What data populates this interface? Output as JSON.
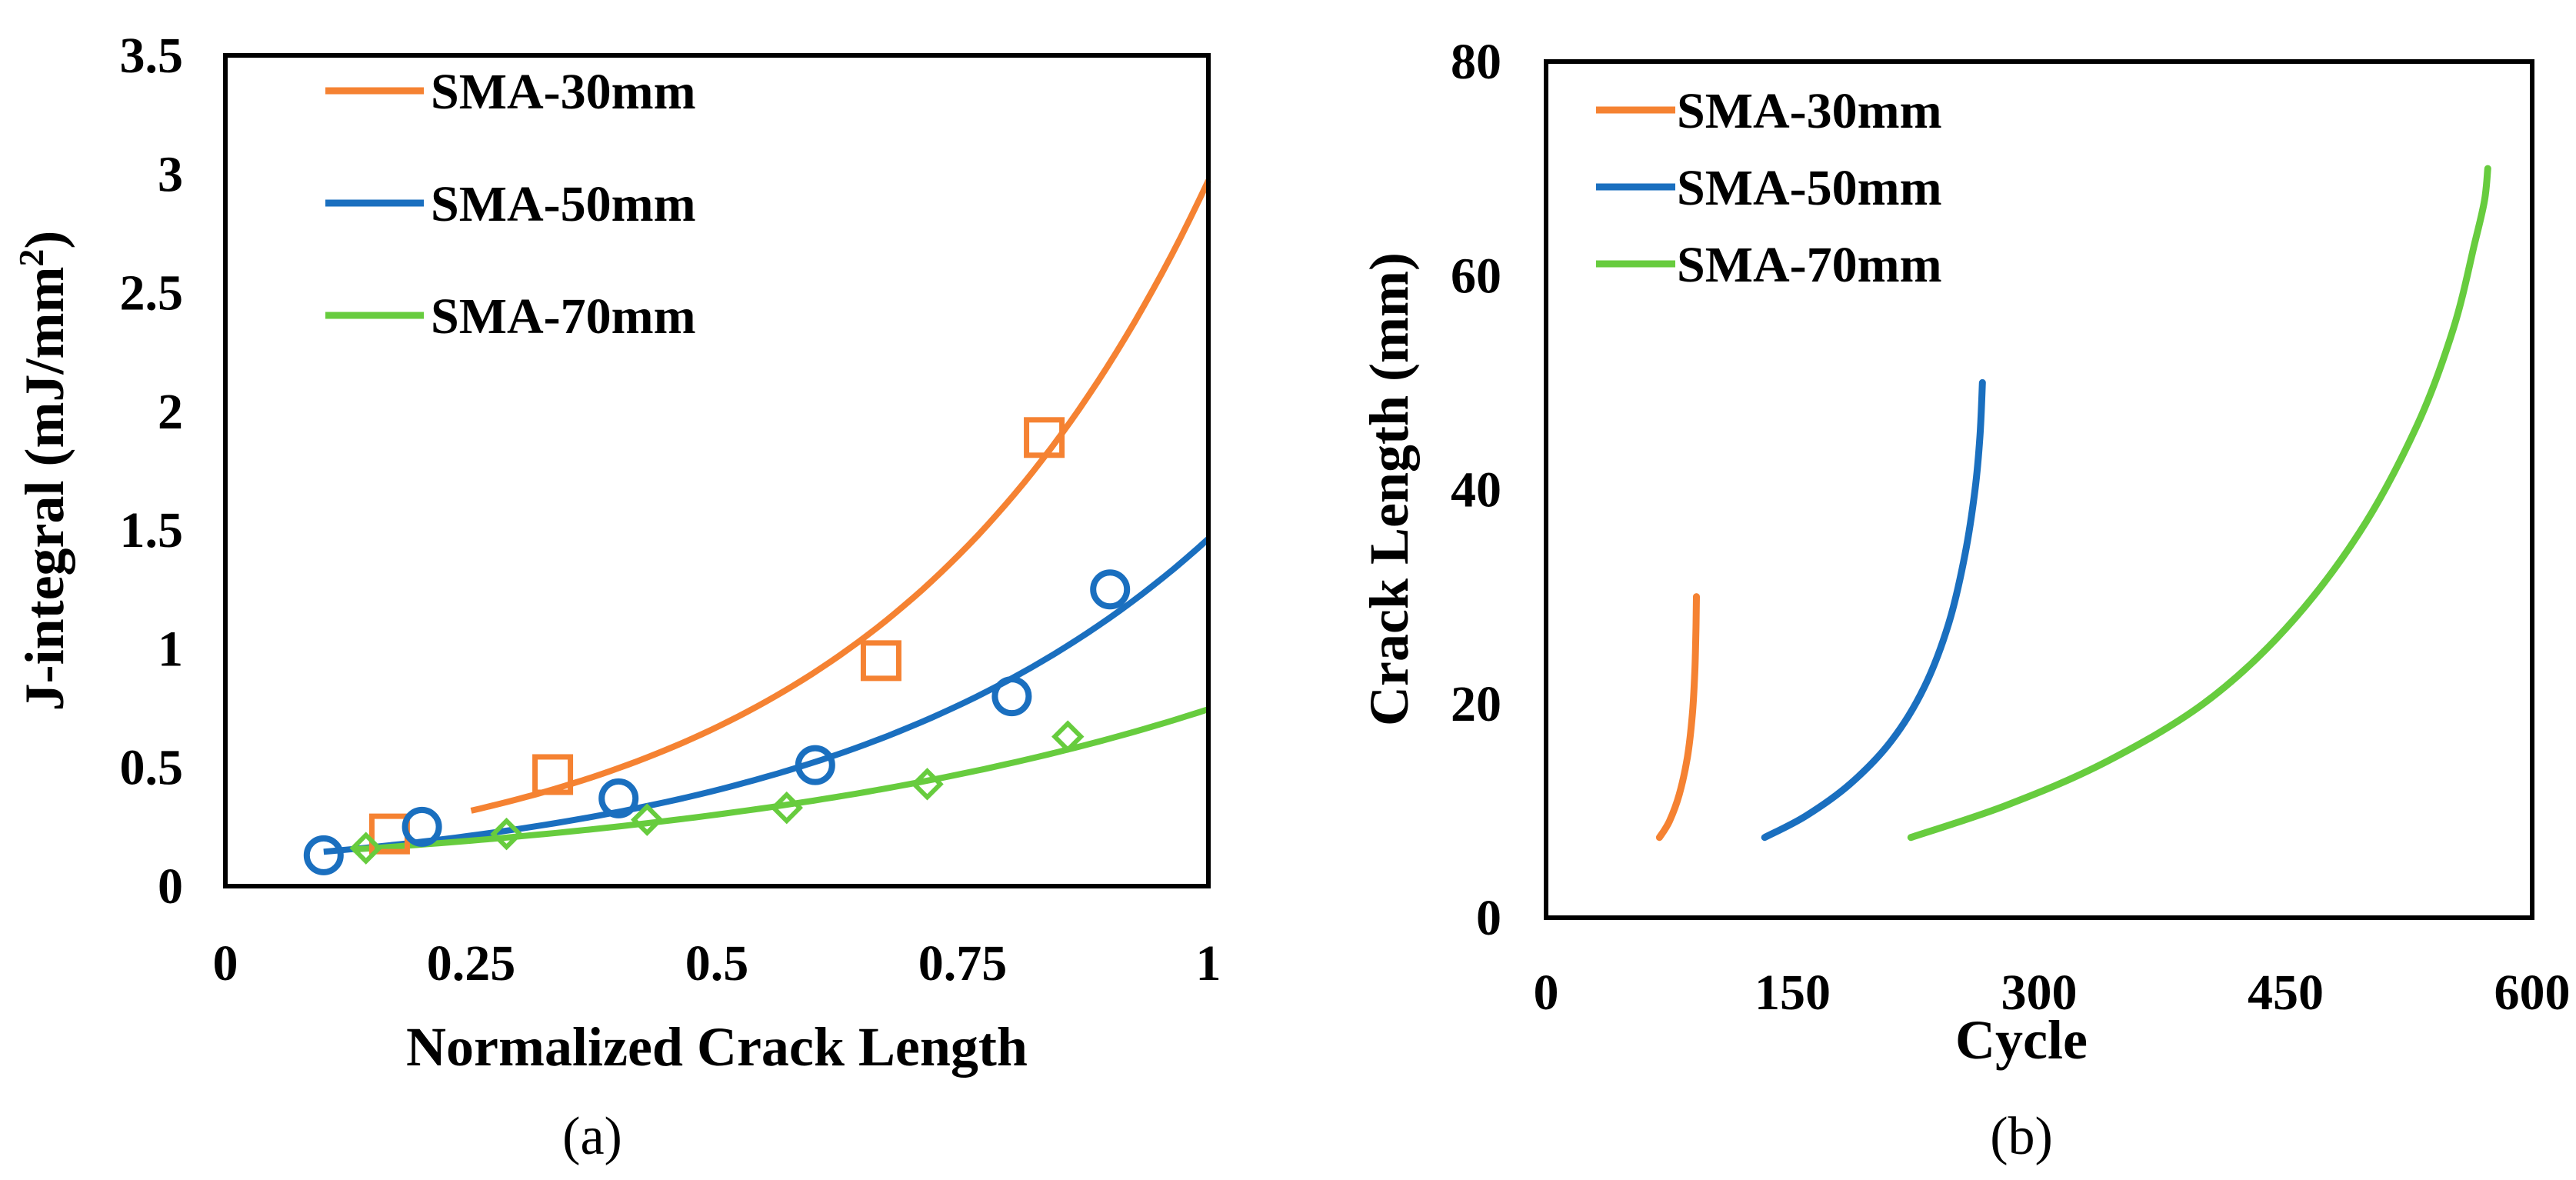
{
  "chart_data": [
    {
      "type": "scatter",
      "caption": "(a)",
      "xlabel": "Normalized Crack Length",
      "ylabel_main": "J-integral (mJ/mm",
      "ylabel_sup": "2",
      "ylabel_end": ")",
      "xlim": [
        0,
        1
      ],
      "ylim": [
        0,
        3.5
      ],
      "xticks": [
        {
          "v": 0,
          "label": "0"
        },
        {
          "v": 0.25,
          "label": "0.25"
        },
        {
          "v": 0.5,
          "label": "0.5"
        },
        {
          "v": 0.75,
          "label": "0.75"
        },
        {
          "v": 1,
          "label": "1"
        }
      ],
      "yticks": [
        {
          "v": 0,
          "label": "0"
        },
        {
          "v": 0.5,
          "label": "0.5"
        },
        {
          "v": 1,
          "label": "1"
        },
        {
          "v": 1.5,
          "label": "1.5"
        },
        {
          "v": 2,
          "label": "2"
        },
        {
          "v": 2.5,
          "label": "2.5"
        },
        {
          "v": 3,
          "label": "3"
        },
        {
          "v": 3.5,
          "label": "3.5"
        }
      ],
      "legend_position": "top-left",
      "series": [
        {
          "name": "SMA-30mm",
          "color": "#F58232",
          "marker": "square",
          "points": [
            [
              0.167,
              0.22
            ],
            [
              0.333,
              0.47
            ],
            [
              0.667,
              0.95
            ],
            [
              0.833,
              1.89
            ]
          ],
          "fit": {
            "a": 0.151,
            "b": 2.98,
            "from": 0.25,
            "to": 1.0
          }
        },
        {
          "name": "SMA-50mm",
          "color": "#1A6FBF",
          "marker": "circle",
          "points": [
            [
              0.1,
              0.13
            ],
            [
              0.2,
              0.25
            ],
            [
              0.4,
              0.37
            ],
            [
              0.6,
              0.51
            ],
            [
              0.8,
              0.8
            ],
            [
              0.9,
              1.25
            ]
          ],
          "fit": {
            "a": 0.112,
            "b": 2.57,
            "from": 0.1,
            "to": 1.0
          }
        },
        {
          "name": "SMA-70mm",
          "color": "#67CC3E",
          "marker": "diamond",
          "points": [
            [
              0.143,
              0.16
            ],
            [
              0.286,
              0.22
            ],
            [
              0.429,
              0.28
            ],
            [
              0.571,
              0.33
            ],
            [
              0.714,
              0.43
            ],
            [
              0.857,
              0.63
            ]
          ],
          "fit": {
            "a": 0.122,
            "b": 1.81,
            "from": 0.13,
            "to": 1.0
          }
        }
      ]
    },
    {
      "type": "line",
      "caption": "(b)",
      "xlabel": "Cycle",
      "ylabel": "Crack Length (mm)",
      "xlim": [
        0,
        600
      ],
      "ylim": [
        0,
        80
      ],
      "xticks": [
        {
          "v": 0,
          "label": "0"
        },
        {
          "v": 150,
          "label": "150"
        },
        {
          "v": 300,
          "label": "300"
        },
        {
          "v": 450,
          "label": "450"
        },
        {
          "v": 600,
          "label": "600"
        }
      ],
      "yticks": [
        {
          "v": 0,
          "label": "0"
        },
        {
          "v": 20,
          "label": "20"
        },
        {
          "v": 40,
          "label": "40"
        },
        {
          "v": 60,
          "label": "60"
        },
        {
          "v": 80,
          "label": "80"
        }
      ],
      "legend_position": "top-left",
      "series": [
        {
          "name": "SMA-30mm",
          "color": "#F58232",
          "points": [
            [
              69,
              7.5
            ],
            [
              75,
              9
            ],
            [
              81,
              11.5
            ],
            [
              86,
              15
            ],
            [
              89,
              19
            ],
            [
              90.5,
              23
            ],
            [
              91.2,
              27
            ],
            [
              91.5,
              30
            ]
          ]
        },
        {
          "name": "SMA-50mm",
          "color": "#1A6FBF",
          "points": [
            [
              133,
              7.5
            ],
            [
              158,
              9.5
            ],
            [
              185,
              12.5
            ],
            [
              210,
              16.5
            ],
            [
              230,
              21.5
            ],
            [
              245,
              27.5
            ],
            [
              255,
              34
            ],
            [
              261,
              40
            ],
            [
              264,
              45
            ],
            [
              265.5,
              50
            ]
          ]
        },
        {
          "name": "SMA-70mm",
          "color": "#67CC3E",
          "points": [
            [
              222,
              7.5
            ],
            [
              280,
              10.5
            ],
            [
              340,
              14.5
            ],
            [
              400,
              20
            ],
            [
              450,
              27
            ],
            [
              495,
              36
            ],
            [
              530,
              46
            ],
            [
              552,
              55
            ],
            [
              565,
              63
            ],
            [
              571,
              67
            ],
            [
              573,
              70
            ]
          ]
        }
      ]
    }
  ]
}
